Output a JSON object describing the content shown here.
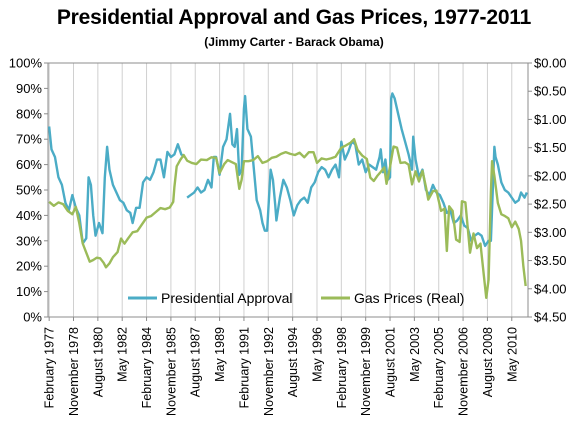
{
  "chart_data": {
    "type": "line",
    "title": "Presidential Approval and Gas Prices, 1977-2011",
    "subtitle": "(Jimmy Carter - Barack Obama)",
    "x_tick_labels": [
      "February 1977",
      "November 1978",
      "August 1980",
      "May 1982",
      "February 1984",
      "November 1985",
      "August 1987",
      "May 1989",
      "February 1991",
      "November 1992",
      "August 1994",
      "May 1996",
      "February 1998",
      "November 1999",
      "August 2001",
      "May 2003",
      "February 2005",
      "November 2006",
      "August 2008",
      "May 2010"
    ],
    "y_left": {
      "range": [
        0,
        100
      ],
      "ticks": [
        "0%",
        "10%",
        "20%",
        "30%",
        "40%",
        "50%",
        "60%",
        "70%",
        "80%",
        "90%",
        "100%"
      ]
    },
    "y_right": {
      "range": [
        0,
        4.5
      ],
      "reversed": true,
      "ticks": [
        "$0.00",
        "$0.50",
        "$1.00",
        "$1.50",
        "$2.00",
        "$2.50",
        "$3.00",
        "$3.50",
        "$4.00",
        "$4.50"
      ]
    },
    "grid": "vertical gridlines at x tick labels",
    "legend_position": "lower-center, inside plot",
    "series": [
      {
        "name": "Presidential Approval",
        "axis": "left",
        "color": "#4bacc6",
        "points": [
          [
            "1977-02",
            75
          ],
          [
            "1977-04",
            66
          ],
          [
            "1977-07",
            63
          ],
          [
            "1977-10",
            55
          ],
          [
            "1978-01",
            52
          ],
          [
            "1978-04",
            45
          ],
          [
            "1978-07",
            42
          ],
          [
            "1978-10",
            48
          ],
          [
            "1979-01",
            43
          ],
          [
            "1979-04",
            40
          ],
          [
            "1979-07",
            29
          ],
          [
            "1979-10",
            31
          ],
          [
            "1979-12",
            55
          ],
          [
            "1980-02",
            52
          ],
          [
            "1980-04",
            40
          ],
          [
            "1980-06",
            32
          ],
          [
            "1980-09",
            37
          ],
          [
            "1980-12",
            33
          ],
          [
            "1981-02",
            55
          ],
          [
            "1981-04",
            67
          ],
          [
            "1981-06",
            58
          ],
          [
            "1981-09",
            52
          ],
          [
            "1981-12",
            49
          ],
          [
            "1982-03",
            46
          ],
          [
            "1982-06",
            45
          ],
          [
            "1982-09",
            42
          ],
          [
            "1982-12",
            41
          ],
          [
            "1983-02",
            37
          ],
          [
            "1983-05",
            43
          ],
          [
            "1983-08",
            43
          ],
          [
            "1983-11",
            53
          ],
          [
            "1984-02",
            55
          ],
          [
            "1984-05",
            54
          ],
          [
            "1984-08",
            57
          ],
          [
            "1984-11",
            62
          ],
          [
            "1985-02",
            62
          ],
          [
            "1985-05",
            55
          ],
          [
            "1985-08",
            65
          ],
          [
            "1985-11",
            63
          ],
          [
            "1986-02",
            64
          ],
          [
            "1986-05",
            68
          ],
          [
            "1986-08",
            64
          ],
          [
            "1986-11",
            63
          ],
          [
            "1987-01",
            47
          ],
          [
            "1987-04",
            48
          ],
          [
            "1987-07",
            49
          ],
          [
            "1987-10",
            51
          ],
          [
            "1988-01",
            49
          ],
          [
            "1988-04",
            50
          ],
          [
            "1988-07",
            54
          ],
          [
            "1988-10",
            51
          ],
          [
            "1988-12",
            63
          ],
          [
            "1989-02",
            63
          ],
          [
            "1989-05",
            56
          ],
          [
            "1989-08",
            67
          ],
          [
            "1989-11",
            70
          ],
          [
            "1990-02",
            80
          ],
          [
            "1990-04",
            68
          ],
          [
            "1990-06",
            67
          ],
          [
            "1990-08",
            74
          ],
          [
            "1990-10",
            56
          ],
          [
            "1990-12",
            58
          ],
          [
            "1991-02",
            82
          ],
          [
            "1991-03",
            87
          ],
          [
            "1991-05",
            74
          ],
          [
            "1991-08",
            71
          ],
          [
            "1991-11",
            56
          ],
          [
            "1992-01",
            46
          ],
          [
            "1992-04",
            42
          ],
          [
            "1992-06",
            37
          ],
          [
            "1992-08",
            34
          ],
          [
            "1992-10",
            34
          ],
          [
            "1993-01",
            58
          ],
          [
            "1993-03",
            54
          ],
          [
            "1993-05",
            44
          ],
          [
            "1993-06",
            38
          ],
          [
            "1993-09",
            47
          ],
          [
            "1993-12",
            54
          ],
          [
            "1994-03",
            51
          ],
          [
            "1994-06",
            46
          ],
          [
            "1994-09",
            40
          ],
          [
            "1994-12",
            44
          ],
          [
            "1995-03",
            46
          ],
          [
            "1995-06",
            47
          ],
          [
            "1995-09",
            45
          ],
          [
            "1995-12",
            51
          ],
          [
            "1996-03",
            53
          ],
          [
            "1996-06",
            57
          ],
          [
            "1996-09",
            59
          ],
          [
            "1996-12",
            58
          ],
          [
            "1997-03",
            55
          ],
          [
            "1997-06",
            58
          ],
          [
            "1997-09",
            60
          ],
          [
            "1997-12",
            55
          ],
          [
            "1998-02",
            69
          ],
          [
            "1998-05",
            62
          ],
          [
            "1998-08",
            65
          ],
          [
            "1998-11",
            69
          ],
          [
            "1999-02",
            68
          ],
          [
            "1999-05",
            60
          ],
          [
            "1999-08",
            62
          ],
          [
            "1999-11",
            57
          ],
          [
            "2000-02",
            60
          ],
          [
            "2000-05",
            59
          ],
          [
            "2000-08",
            58
          ],
          [
            "2000-11",
            63
          ],
          [
            "2000-12",
            66
          ],
          [
            "2001-02",
            57
          ],
          [
            "2001-04",
            62
          ],
          [
            "2001-06",
            54
          ],
          [
            "2001-08",
            55
          ],
          [
            "2001-09",
            86
          ],
          [
            "2001-10",
            88
          ],
          [
            "2001-12",
            86
          ],
          [
            "2002-03",
            80
          ],
          [
            "2002-06",
            74
          ],
          [
            "2002-09",
            69
          ],
          [
            "2002-12",
            64
          ],
          [
            "2003-03",
            58
          ],
          [
            "2003-04",
            71
          ],
          [
            "2003-06",
            62
          ],
          [
            "2003-09",
            55
          ],
          [
            "2003-12",
            58
          ],
          [
            "2004-03",
            50
          ],
          [
            "2004-06",
            48
          ],
          [
            "2004-09",
            52
          ],
          [
            "2004-12",
            49
          ],
          [
            "2005-03",
            48
          ],
          [
            "2005-06",
            45
          ],
          [
            "2005-09",
            41
          ],
          [
            "2005-12",
            42
          ],
          [
            "2006-03",
            37
          ],
          [
            "2006-06",
            38
          ],
          [
            "2006-09",
            40
          ],
          [
            "2006-12",
            36
          ],
          [
            "2007-03",
            35
          ],
          [
            "2007-06",
            30
          ],
          [
            "2007-09",
            32
          ],
          [
            "2007-12",
            33
          ],
          [
            "2008-03",
            32
          ],
          [
            "2008-06",
            28
          ],
          [
            "2008-09",
            30
          ],
          [
            "2008-11",
            30
          ],
          [
            "2009-02",
            67
          ],
          [
            "2009-03",
            63
          ],
          [
            "2009-05",
            60
          ],
          [
            "2009-08",
            53
          ],
          [
            "2009-11",
            50
          ],
          [
            "2010-02",
            49
          ],
          [
            "2010-05",
            47
          ],
          [
            "2010-08",
            45
          ],
          [
            "2010-11",
            46
          ],
          [
            "2011-01",
            49
          ],
          [
            "2011-04",
            47
          ],
          [
            "2011-06",
            49
          ]
        ]
      },
      {
        "name": "Gas Prices (Real)",
        "axis": "right",
        "color": "#9bbb59",
        "points": [
          [
            "1977-02",
            2.46
          ],
          [
            "1977-06",
            2.53
          ],
          [
            "1977-10",
            2.47
          ],
          [
            "1978-02",
            2.5
          ],
          [
            "1978-06",
            2.62
          ],
          [
            "1978-10",
            2.68
          ],
          [
            "1979-01",
            2.55
          ],
          [
            "1979-04",
            2.84
          ],
          [
            "1979-07",
            3.2
          ],
          [
            "1979-10",
            3.36
          ],
          [
            "1980-01",
            3.52
          ],
          [
            "1980-04",
            3.49
          ],
          [
            "1980-07",
            3.45
          ],
          [
            "1980-10",
            3.46
          ],
          [
            "1981-01",
            3.54
          ],
          [
            "1981-03",
            3.62
          ],
          [
            "1981-06",
            3.55
          ],
          [
            "1981-09",
            3.44
          ],
          [
            "1982-01",
            3.35
          ],
          [
            "1982-04",
            3.11
          ],
          [
            "1982-07",
            3.2
          ],
          [
            "1982-10",
            3.11
          ],
          [
            "1983-02",
            3.0
          ],
          [
            "1983-06",
            2.98
          ],
          [
            "1983-10",
            2.86
          ],
          [
            "1984-02",
            2.74
          ],
          [
            "1984-06",
            2.71
          ],
          [
            "1984-10",
            2.64
          ],
          [
            "1985-02",
            2.57
          ],
          [
            "1985-06",
            2.59
          ],
          [
            "1985-10",
            2.56
          ],
          [
            "1986-01",
            2.46
          ],
          [
            "1986-02",
            2.2
          ],
          [
            "1986-04",
            1.83
          ],
          [
            "1986-07",
            1.72
          ],
          [
            "1986-10",
            1.63
          ],
          [
            "1987-01",
            1.73
          ],
          [
            "1987-05",
            1.77
          ],
          [
            "1987-09",
            1.79
          ],
          [
            "1988-01",
            1.71
          ],
          [
            "1988-06",
            1.72
          ],
          [
            "1988-10",
            1.67
          ],
          [
            "1989-02",
            1.68
          ],
          [
            "1989-05",
            1.95
          ],
          [
            "1989-09",
            1.79
          ],
          [
            "1989-12",
            1.72
          ],
          [
            "1990-03",
            1.75
          ],
          [
            "1990-07",
            1.79
          ],
          [
            "1990-10",
            2.23
          ],
          [
            "1990-12",
            2.07
          ],
          [
            "1991-02",
            1.74
          ],
          [
            "1991-06",
            1.74
          ],
          [
            "1991-10",
            1.72
          ],
          [
            "1992-02",
            1.65
          ],
          [
            "1992-06",
            1.77
          ],
          [
            "1992-10",
            1.74
          ],
          [
            "1993-02",
            1.68
          ],
          [
            "1993-06",
            1.66
          ],
          [
            "1993-10",
            1.61
          ],
          [
            "1994-02",
            1.58
          ],
          [
            "1994-06",
            1.61
          ],
          [
            "1994-10",
            1.63
          ],
          [
            "1995-02",
            1.59
          ],
          [
            "1995-06",
            1.67
          ],
          [
            "1995-10",
            1.58
          ],
          [
            "1996-02",
            1.58
          ],
          [
            "1996-05",
            1.77
          ],
          [
            "1996-09",
            1.69
          ],
          [
            "1997-01",
            1.71
          ],
          [
            "1997-05",
            1.69
          ],
          [
            "1997-09",
            1.66
          ],
          [
            "1998-02",
            1.5
          ],
          [
            "1998-06",
            1.46
          ],
          [
            "1998-10",
            1.41
          ],
          [
            "1999-01",
            1.35
          ],
          [
            "1999-04",
            1.54
          ],
          [
            "1999-08",
            1.64
          ],
          [
            "1999-12",
            1.7
          ],
          [
            "2000-03",
            2.03
          ],
          [
            "2000-06",
            2.09
          ],
          [
            "2000-09",
            2.0
          ],
          [
            "2000-12",
            1.93
          ],
          [
            "2001-03",
            1.85
          ],
          [
            "2001-05",
            2.14
          ],
          [
            "2001-08",
            1.84
          ],
          [
            "2001-11",
            1.48
          ],
          [
            "2002-02",
            1.5
          ],
          [
            "2002-05",
            1.77
          ],
          [
            "2002-09",
            1.76
          ],
          [
            "2002-12",
            1.8
          ],
          [
            "2003-03",
            2.15
          ],
          [
            "2003-06",
            1.92
          ],
          [
            "2003-09",
            2.1
          ],
          [
            "2003-12",
            1.91
          ],
          [
            "2004-03",
            2.2
          ],
          [
            "2004-05",
            2.42
          ],
          [
            "2004-09",
            2.27
          ],
          [
            "2004-12",
            2.26
          ],
          [
            "2005-04",
            2.62
          ],
          [
            "2005-07",
            2.58
          ],
          [
            "2005-09",
            3.33
          ],
          [
            "2005-11",
            2.54
          ],
          [
            "2006-02",
            2.62
          ],
          [
            "2006-05",
            3.13
          ],
          [
            "2006-08",
            3.17
          ],
          [
            "2006-10",
            2.45
          ],
          [
            "2007-01",
            2.47
          ],
          [
            "2007-05",
            3.36
          ],
          [
            "2007-08",
            3.02
          ],
          [
            "2007-11",
            3.28
          ],
          [
            "2008-02",
            3.2
          ],
          [
            "2008-05",
            3.78
          ],
          [
            "2008-07",
            4.16
          ],
          [
            "2008-09",
            3.84
          ],
          [
            "2008-11",
            2.29
          ],
          [
            "2008-12",
            1.74
          ],
          [
            "2009-02",
            2.0
          ],
          [
            "2009-05",
            2.48
          ],
          [
            "2009-08",
            2.68
          ],
          [
            "2009-11",
            2.71
          ],
          [
            "2010-02",
            2.75
          ],
          [
            "2010-05",
            2.91
          ],
          [
            "2010-08",
            2.81
          ],
          [
            "2010-11",
            2.94
          ],
          [
            "2011-01",
            3.15
          ],
          [
            "2011-03",
            3.6
          ],
          [
            "2011-05",
            3.95
          ]
        ]
      }
    ]
  }
}
